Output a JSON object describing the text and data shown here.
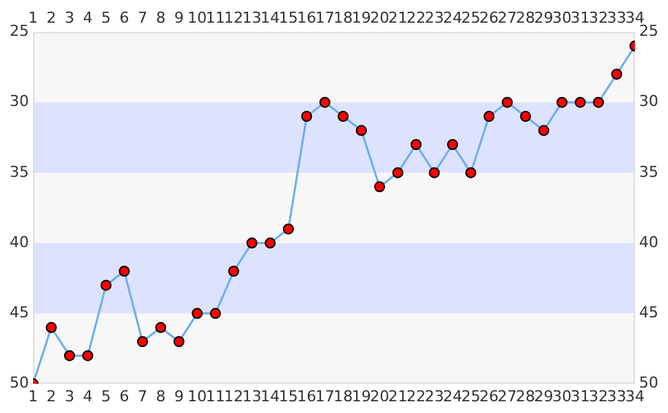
{
  "chart_data": {
    "type": "line",
    "x": [
      1,
      2,
      3,
      4,
      5,
      6,
      7,
      8,
      9,
      10,
      11,
      12,
      13,
      14,
      15,
      16,
      17,
      18,
      19,
      20,
      21,
      22,
      23,
      24,
      25,
      26,
      27,
      28,
      29,
      30,
      31,
      32,
      33,
      34
    ],
    "series": [
      {
        "color": "#6aaef0",
        "values": [
          50,
          46,
          48,
          48,
          43,
          42,
          47,
          46,
          47,
          45,
          45,
          42,
          40,
          40,
          39,
          31,
          30,
          31,
          32,
          36,
          35,
          33,
          35,
          33,
          35,
          31,
          30,
          31,
          32,
          30,
          30,
          30,
          28,
          26
        ]
      }
    ],
    "xlim": [
      1,
      34
    ],
    "xticks": [
      1,
      2,
      3,
      4,
      5,
      6,
      7,
      8,
      9,
      10,
      11,
      12,
      13,
      14,
      15,
      16,
      17,
      18,
      19,
      20,
      21,
      22,
      23,
      24,
      25,
      26,
      27,
      28,
      29,
      30,
      31,
      32,
      33,
      34
    ],
    "x2lim": [
      1,
      34
    ],
    "x2ticks": [
      1,
      2,
      3,
      4,
      5,
      6,
      7,
      8,
      9,
      10,
      11,
      12,
      13,
      14,
      15,
      16,
      17,
      18,
      19,
      20,
      21,
      22,
      23,
      24,
      25,
      26,
      27,
      28,
      29,
      30,
      31,
      32,
      33,
      34
    ],
    "ylim": [
      50,
      25
    ],
    "yticks": [
      25,
      30,
      35,
      40,
      45,
      50
    ],
    "y2lim": [
      50,
      25
    ],
    "y2ticks": [
      25,
      30,
      35,
      40,
      45,
      50
    ],
    "bands": [
      {
        "axis": "y",
        "from": 30,
        "to": 35,
        "color": "#dde3ff"
      },
      {
        "axis": "y",
        "from": 40,
        "to": 45,
        "color": "#dde3ff"
      }
    ],
    "grid": false,
    "legend": false,
    "marker": "circle",
    "line_style": "solid"
  }
}
